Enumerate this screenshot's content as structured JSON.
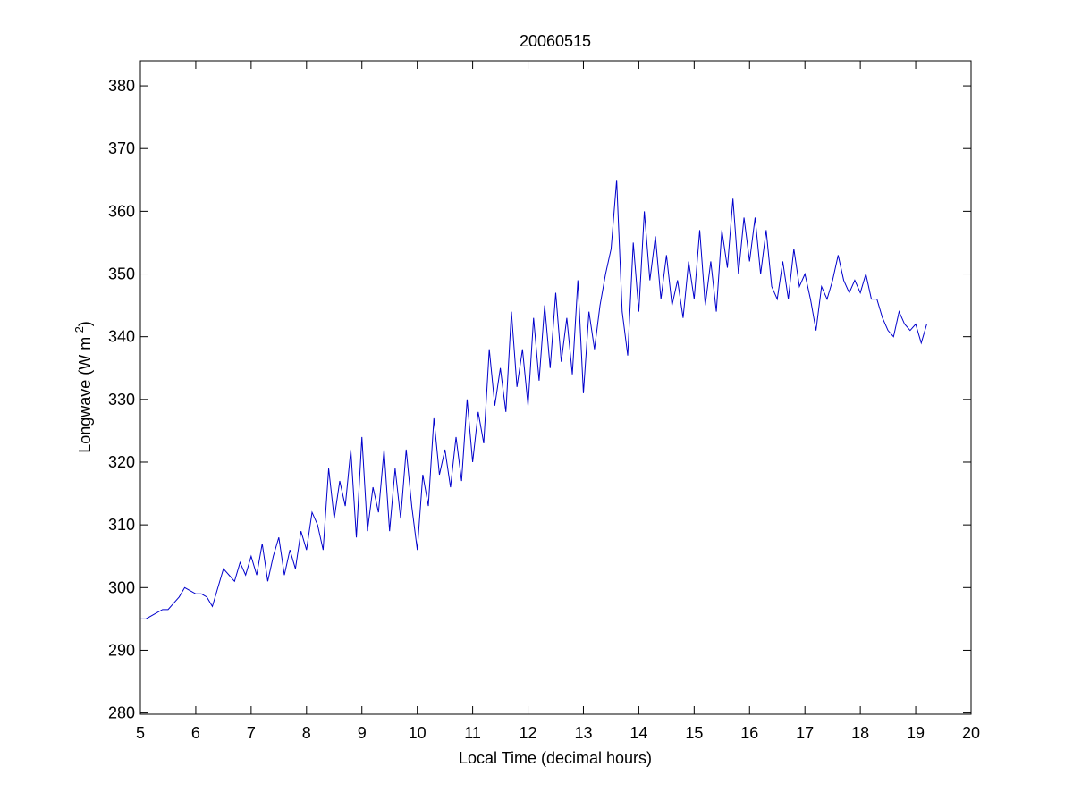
{
  "chart_data": {
    "type": "line",
    "title": "20060515",
    "x_label": "Local Time (decimal hours)",
    "y_label": {
      "text": "Longwave (W m",
      "superscript": "-2",
      "suffix": ")"
    },
    "xlim": [
      5,
      20
    ],
    "xticks": [
      5,
      6,
      7,
      8,
      9,
      10,
      11,
      12,
      13,
      14,
      15,
      16,
      17,
      18,
      19,
      20
    ],
    "ylim": [
      279.8,
      384
    ],
    "yticks": [
      280,
      290,
      300,
      310,
      320,
      330,
      340,
      350,
      360,
      370,
      380
    ],
    "grid": false,
    "box": true,
    "series": [
      {
        "color": "#0000cc",
        "x": [
          5.0,
          5.1,
          5.2,
          5.3,
          5.4,
          5.5,
          5.6,
          5.7,
          5.8,
          5.9,
          6.0,
          6.1,
          6.2,
          6.3,
          6.4,
          6.5,
          6.6,
          6.7,
          6.8,
          6.9,
          7.0,
          7.1,
          7.2,
          7.3,
          7.4,
          7.5,
          7.6,
          7.7,
          7.8,
          7.9,
          8.0,
          8.1,
          8.2,
          8.3,
          8.4,
          8.5,
          8.6,
          8.7,
          8.8,
          8.9,
          9.0,
          9.1,
          9.2,
          9.3,
          9.4,
          9.5,
          9.6,
          9.7,
          9.8,
          9.9,
          10.0,
          10.1,
          10.2,
          10.3,
          10.4,
          10.5,
          10.6,
          10.7,
          10.8,
          10.9,
          11.0,
          11.1,
          11.2,
          11.3,
          11.4,
          11.5,
          11.6,
          11.7,
          11.8,
          11.9,
          12.0,
          12.1,
          12.2,
          12.3,
          12.4,
          12.5,
          12.6,
          12.7,
          12.8,
          12.9,
          13.0,
          13.1,
          13.2,
          13.3,
          13.4,
          13.5,
          13.6,
          13.7,
          13.8,
          13.9,
          14.0,
          14.1,
          14.2,
          14.3,
          14.4,
          14.5,
          14.6,
          14.7,
          14.8,
          14.9,
          15.0,
          15.1,
          15.2,
          15.3,
          15.4,
          15.5,
          15.6,
          15.7,
          15.8,
          15.9,
          16.0,
          16.1,
          16.2,
          16.3,
          16.4,
          16.5,
          16.6,
          16.7,
          16.8,
          16.9,
          17.0,
          17.1,
          17.2,
          17.3,
          17.4,
          17.5,
          17.6,
          17.7,
          17.8,
          17.9,
          18.0,
          18.1,
          18.2,
          18.3,
          18.4,
          18.5,
          18.6,
          18.7,
          18.8,
          18.9,
          19.0,
          19.1,
          19.2
        ],
        "values": [
          295,
          295,
          295.5,
          296,
          296.5,
          296.5,
          297.5,
          298.5,
          300,
          299.5,
          299,
          299,
          298.5,
          297,
          300,
          303,
          302,
          301,
          304,
          302,
          305,
          302,
          307,
          301,
          305,
          308,
          302,
          306,
          303,
          309,
          306,
          312,
          310,
          306,
          319,
          311,
          317,
          313,
          322,
          308,
          324,
          309,
          316,
          312,
          322,
          309,
          319,
          311,
          322,
          313,
          306,
          318,
          313,
          327,
          318,
          322,
          316,
          324,
          317,
          330,
          320,
          328,
          323,
          338,
          329,
          335,
          328,
          344,
          332,
          338,
          329,
          343,
          333,
          345,
          335,
          347,
          336,
          343,
          334,
          349,
          331,
          344,
          338,
          345,
          350,
          354,
          365,
          344,
          337,
          355,
          344,
          360,
          349,
          356,
          346,
          353,
          345,
          349,
          343,
          352,
          346,
          357,
          345,
          352,
          344,
          357,
          351,
          362,
          350,
          359,
          352,
          359,
          350,
          357,
          348,
          346,
          352,
          346,
          354,
          348,
          350,
          346,
          341,
          348,
          346,
          349,
          353,
          349,
          347,
          349,
          347,
          350,
          346,
          346,
          343,
          341,
          340,
          344,
          342,
          341,
          342,
          339,
          342
        ]
      }
    ]
  }
}
